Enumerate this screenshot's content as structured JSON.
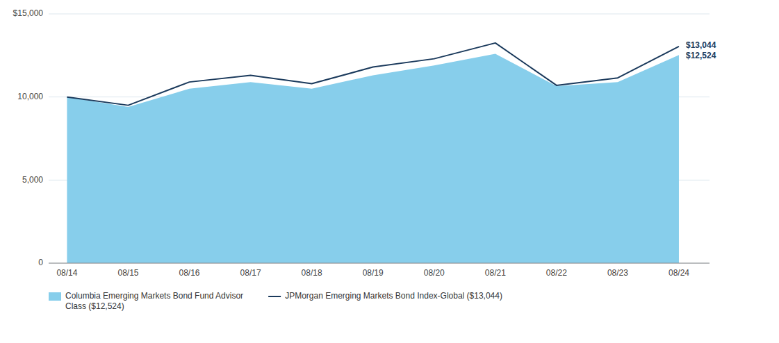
{
  "chart_data": {
    "type": "area",
    "categories": [
      "08/14",
      "08/15",
      "08/16",
      "08/17",
      "08/18",
      "08/19",
      "08/20",
      "08/21",
      "08/22",
      "08/23",
      "08/24"
    ],
    "series": [
      {
        "name": "Columbia Emerging Markets Bond Fund Advisor\nClass ($12,524)",
        "type": "area",
        "color": "#87CEEB",
        "values": [
          10000,
          9400,
          10500,
          10900,
          10500,
          11300,
          11900,
          12600,
          10650,
          10900,
          12524
        ]
      },
      {
        "name": "JPMorgan Emerging Markets Bond Index-Global ($13,044)",
        "type": "line",
        "color": "#1B3A5C",
        "values": [
          10000,
          9500,
          10900,
          11300,
          10800,
          11800,
          12300,
          13250,
          10700,
          11150,
          13044
        ]
      }
    ],
    "ylim": [
      0,
      15000
    ],
    "yticks": [
      0,
      {
        "value": 5000,
        "label": "5,000"
      },
      {
        "value": 10000,
        "label": "10,000"
      },
      {
        "value": 15000,
        "label": "$15,000"
      }
    ],
    "grid": true,
    "legend": "bottom",
    "annotations": [
      {
        "text": "$13,044",
        "x": "08/24",
        "y": 13044
      },
      {
        "text": "$12,524",
        "x": "08/24",
        "y": 12524
      }
    ]
  }
}
